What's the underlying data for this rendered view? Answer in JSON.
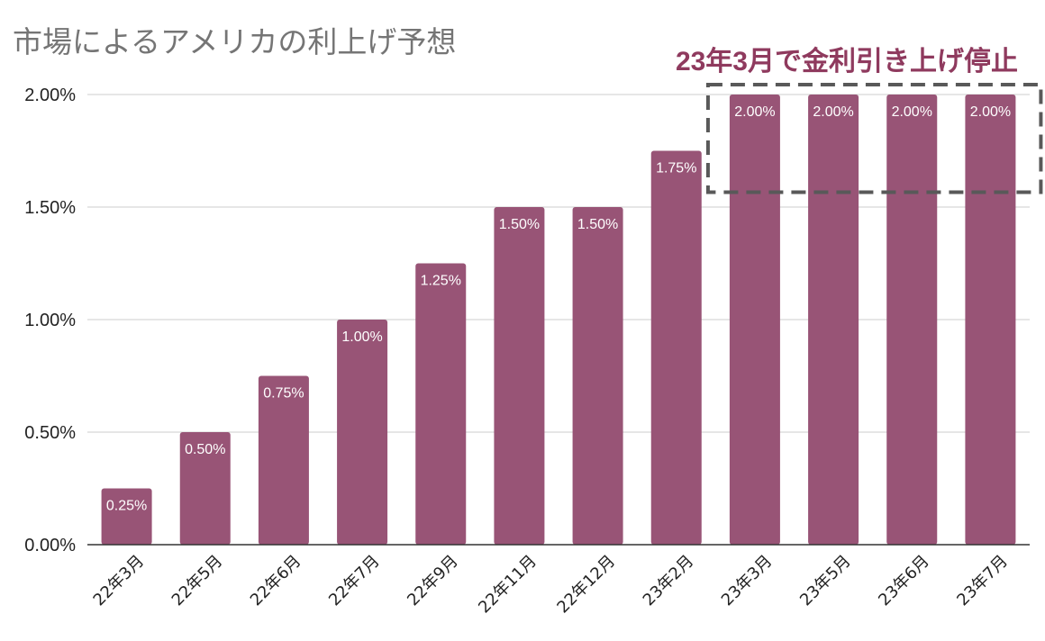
{
  "chart_data": {
    "type": "bar",
    "title": "市場によるアメリカの利上げ予想",
    "annotation": "23年3月で金利引き上げ停止",
    "categories": [
      "22年3月",
      "22年5月",
      "22年6月",
      "22年7月",
      "22年9月",
      "22年11月",
      "22年12月",
      "23年2月",
      "23年3月",
      "23年5月",
      "23年6月",
      "23年7月"
    ],
    "values": [
      0.25,
      0.5,
      0.75,
      1.0,
      1.25,
      1.5,
      1.5,
      1.75,
      2.0,
      2.0,
      2.0,
      2.0
    ],
    "data_labels": [
      "0.25%",
      "0.50%",
      "0.75%",
      "1.00%",
      "1.25%",
      "1.50%",
      "1.50%",
      "1.75%",
      "2.00%",
      "2.00%",
      "2.00%",
      "2.00%"
    ],
    "y_ticks": [
      0,
      0.5,
      1.0,
      1.5,
      2.0
    ],
    "y_tick_labels": [
      "0.00%",
      "0.50%",
      "1.00%",
      "1.50%",
      "2.00%"
    ],
    "ylim": [
      0,
      2.0
    ],
    "grid": true,
    "legend": "none",
    "highlight_range": [
      "23年3月",
      "23年7月"
    ],
    "colors": {
      "bar": "#985476",
      "annotation": "#8f3a5e",
      "title": "#757575",
      "highlight_box": "#595959"
    }
  }
}
